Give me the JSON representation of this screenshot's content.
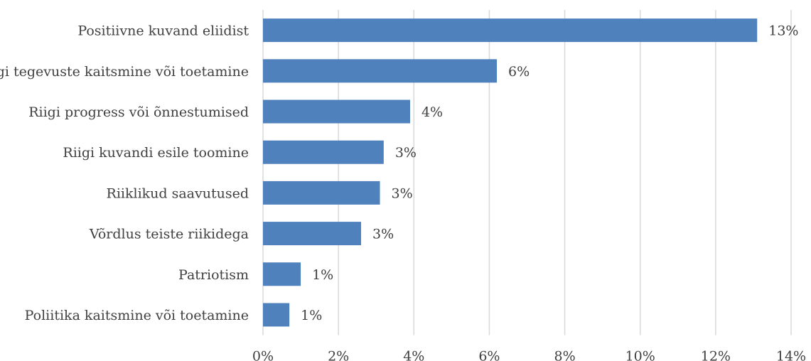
{
  "chart_data": {
    "type": "bar",
    "orientation": "horizontal",
    "categories": [
      "Positiivne kuvand eliidist",
      "Riigi tegevuste kaitsmine või toetamine",
      "Riigi progress või õnnestumised",
      "Riigi kuvandi esile toomine",
      "Riiklikud saavutused",
      "Võrdlus teiste riikidega",
      "Patriotism",
      "Poliitika kaitsmine või toetamine"
    ],
    "values": [
      13.1,
      6.2,
      3.9,
      3.2,
      3.1,
      2.6,
      1.0,
      0.7
    ],
    "data_labels": [
      "13%",
      "6%",
      "4%",
      "3%",
      "3%",
      "3%",
      "1%",
      "1%"
    ],
    "xlim": [
      0,
      14
    ],
    "x_ticks": [
      0,
      2,
      4,
      6,
      8,
      10,
      12,
      14
    ],
    "x_tick_labels": [
      "0%",
      "2%",
      "4%",
      "6%",
      "8%",
      "10%",
      "12%",
      "14%"
    ],
    "title": "",
    "xlabel": "",
    "ylabel": "",
    "grid": "vertical",
    "legend": "none",
    "bar_color": "#4f81bd"
  }
}
